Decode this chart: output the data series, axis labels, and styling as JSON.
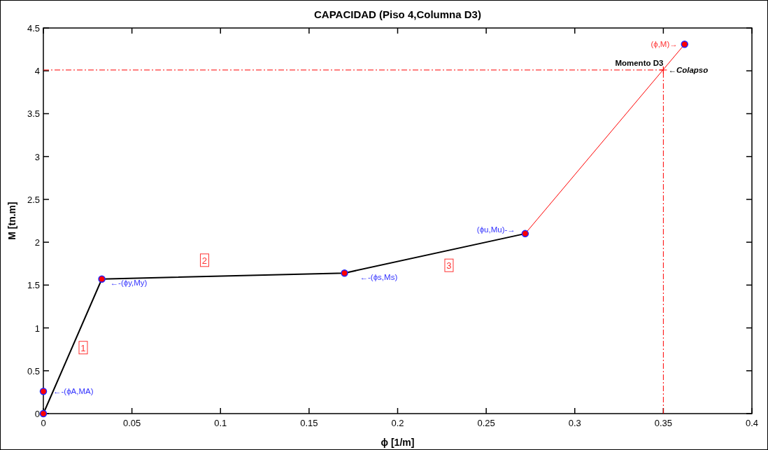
{
  "chart_data": {
    "type": "line",
    "title": "CAPACIDAD (Piso 4,Columna D3)",
    "xlabel": "ϕ  [1/m]",
    "ylabel": "M  [tn.m]",
    "xlim": [
      0,
      0.4
    ],
    "ylim": [
      0,
      4.5
    ],
    "xticks": [
      0,
      0.05,
      0.1,
      0.15,
      0.2,
      0.25,
      0.3,
      0.35,
      0.4
    ],
    "yticks": [
      0,
      0.5,
      1,
      1.5,
      2,
      2.5,
      3,
      3.5,
      4,
      4.5
    ],
    "grid": false,
    "series": [
      {
        "color": "#000000",
        "x": [
          0,
          0.033,
          0.17,
          0.272
        ],
        "values": [
          0,
          1.57,
          1.64,
          2.1
        ],
        "marker": "none"
      },
      {
        "type": "line",
        "color": "#ff0000",
        "x": [
          0.272,
          0.362
        ],
        "values": [
          2.1,
          4.31
        ],
        "marker": "none"
      },
      {
        "type": "scatter",
        "color": "#ff0000",
        "x": [
          0,
          0,
          0.033,
          0.17,
          0.272
        ],
        "values": [
          0,
          0.26,
          1.57,
          1.64,
          2.1
        ],
        "marker": "circle"
      },
      {
        "type": "scatter",
        "color": "#ff0000",
        "x": [
          0.362
        ],
        "values": [
          4.31
        ],
        "marker": "circle"
      },
      {
        "type": "scatter",
        "color": "#ff0000",
        "x": [
          0.35
        ],
        "values": [
          4.01
        ],
        "marker": "cross"
      }
    ],
    "ref_lines": [
      {
        "axis": "x",
        "value": 0.35,
        "color": "#ff0000",
        "line_style": "dashdot"
      },
      {
        "axis": "y",
        "value": 4.01,
        "color": "#ff0000",
        "line_style": "dashdot"
      }
    ],
    "annotations": [
      {
        "text": "←-(ϕA,MA)",
        "x": 0,
        "y": 0.26
      },
      {
        "text": "←-(ϕy,My)",
        "x": 0.033,
        "y": 1.57
      },
      {
        "text": "←-(ϕs,Ms)",
        "x": 0.17,
        "y": 1.64
      },
      {
        "text": "(ϕu,Mu)-→",
        "x": 0.272,
        "y": 2.1
      },
      {
        "text": "(ϕ,M)→",
        "x": 0.362,
        "y": 4.31
      },
      {
        "text": "Momento D3",
        "x": 0.35,
        "y": 4.01
      },
      {
        "text": "←Colapso",
        "x": 0.35,
        "y": 4.01
      },
      {
        "text": "1",
        "x": 0.0225,
        "y": 0.77
      },
      {
        "text": "2",
        "x": 0.091,
        "y": 1.79
      },
      {
        "text": "3",
        "x": 0.229,
        "y": 1.73
      }
    ]
  }
}
